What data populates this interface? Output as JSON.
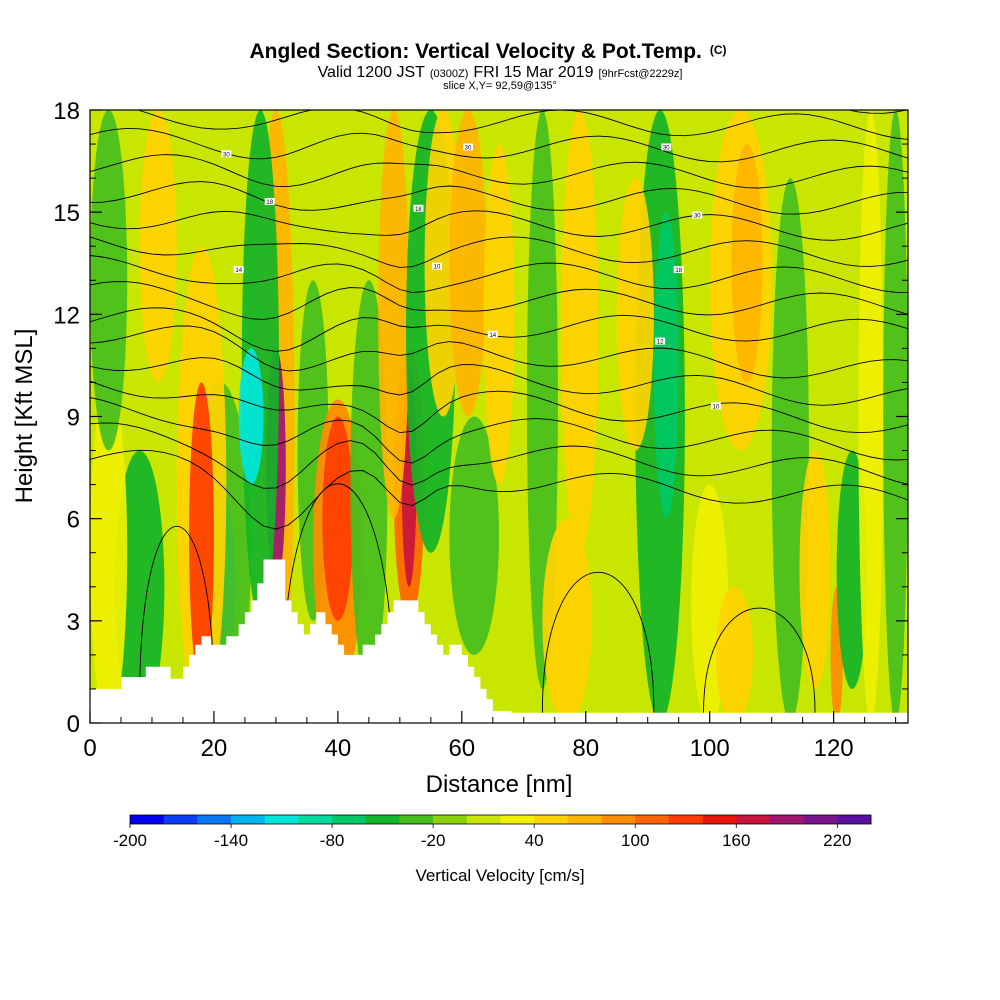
{
  "header": {
    "title": "Angled Section: Vertical Velocity & Pot.Temp.",
    "title_tag": "(C)",
    "valid_prefix": "Valid 1200 JST",
    "valid_utc": "(0300Z)",
    "valid_date": "FRI 15 Mar 2019",
    "forecast_info": "[9hrFcst@2229z]",
    "slice_info": "slice X,Y= 92,59@135°"
  },
  "chart_data": {
    "type": "heatmap",
    "title": "Angled Section: Vertical Velocity & Pot.Temp.",
    "xlabel": "Distance [nm]",
    "ylabel": "Height [Kft MSL]",
    "xlim": [
      0,
      132
    ],
    "ylim": [
      0,
      18
    ],
    "x_ticks": [
      0,
      20,
      40,
      60,
      80,
      100,
      120
    ],
    "y_ticks": [
      0,
      3,
      6,
      9,
      12,
      15,
      18
    ],
    "x_tick_labels": [
      "0",
      "20",
      "40",
      "60",
      "80",
      "100",
      "120"
    ],
    "y_tick_labels": [
      "0",
      "3",
      "6",
      "9",
      "12",
      "15",
      "18"
    ],
    "colorbar": {
      "label": "Vertical Velocity [cm/s]",
      "min": -200,
      "max": 240,
      "step": 20,
      "tick_values": [
        -200,
        -140,
        -80,
        -20,
        40,
        100,
        160,
        220
      ],
      "tick_labels": [
        "-200",
        "-140",
        "-80",
        "-20",
        "40",
        "100",
        "160",
        "220"
      ],
      "colors": [
        "#0000f0",
        "#0a3ef5",
        "#0a78f5",
        "#00b4f0",
        "#00e6dc",
        "#00dca0",
        "#00c864",
        "#14b428",
        "#46be1e",
        "#8cd20a",
        "#c8e600",
        "#f0f000",
        "#ffd200",
        "#ffb400",
        "#ff8c00",
        "#ff6400",
        "#ff3c00",
        "#e6140a",
        "#c8143c",
        "#a0146e",
        "#7a148c",
        "#5a10a0"
      ]
    },
    "terrain": [
      [
        0,
        1
      ],
      [
        5,
        1
      ],
      [
        5,
        1.35
      ],
      [
        9,
        1.35
      ],
      [
        9,
        1.65
      ],
      [
        13,
        1.65
      ],
      [
        13,
        1.3
      ],
      [
        15,
        1.3
      ],
      [
        15,
        1.65
      ],
      [
        16,
        1.65
      ],
      [
        16,
        2.0
      ],
      [
        17,
        2.0
      ],
      [
        17,
        2.3
      ],
      [
        18,
        2.3
      ],
      [
        18,
        2.55
      ],
      [
        19.5,
        2.55
      ],
      [
        19.5,
        2.3
      ],
      [
        22,
        2.3
      ],
      [
        22,
        2.55
      ],
      [
        24,
        2.55
      ],
      [
        24,
        2.9
      ],
      [
        25,
        2.9
      ],
      [
        25,
        3.25
      ],
      [
        26,
        3.25
      ],
      [
        26,
        3.6
      ],
      [
        27,
        3.6
      ],
      [
        27,
        4.1
      ],
      [
        28,
        4.1
      ],
      [
        28,
        4.8
      ],
      [
        31.5,
        4.8
      ],
      [
        31.5,
        3.6
      ],
      [
        32.5,
        3.6
      ],
      [
        32.5,
        3.25
      ],
      [
        33.5,
        3.25
      ],
      [
        33.5,
        2.9
      ],
      [
        34.5,
        2.9
      ],
      [
        34.5,
        2.6
      ],
      [
        35.5,
        2.6
      ],
      [
        35.5,
        2.9
      ],
      [
        36.5,
        2.9
      ],
      [
        36.5,
        3.25
      ],
      [
        38,
        3.25
      ],
      [
        38,
        2.9
      ],
      [
        39,
        2.9
      ],
      [
        39,
        2.6
      ],
      [
        40,
        2.6
      ],
      [
        40,
        2.3
      ],
      [
        41,
        2.3
      ],
      [
        41,
        2.0
      ],
      [
        44,
        2.0
      ],
      [
        44,
        2.3
      ],
      [
        46,
        2.3
      ],
      [
        46,
        2.6
      ],
      [
        47,
        2.6
      ],
      [
        47,
        2.9
      ],
      [
        48,
        2.9
      ],
      [
        48,
        3.25
      ],
      [
        49,
        3.25
      ],
      [
        49,
        3.6
      ],
      [
        53,
        3.6
      ],
      [
        53,
        3.25
      ],
      [
        54,
        3.25
      ],
      [
        54,
        2.9
      ],
      [
        55,
        2.9
      ],
      [
        55,
        2.6
      ],
      [
        56,
        2.6
      ],
      [
        56,
        2.3
      ],
      [
        57,
        2.3
      ],
      [
        57,
        2.0
      ],
      [
        58,
        2.0
      ],
      [
        58,
        2.3
      ],
      [
        60,
        2.3
      ],
      [
        60,
        2.0
      ],
      [
        61,
        2.0
      ],
      [
        61,
        1.65
      ],
      [
        62,
        1.65
      ],
      [
        62,
        1.35
      ],
      [
        63,
        1.35
      ],
      [
        63,
        1.0
      ],
      [
        64,
        1.0
      ],
      [
        64,
        0.7
      ],
      [
        65,
        0.7
      ],
      [
        65,
        0.35
      ],
      [
        68,
        0.35
      ],
      [
        68,
        0.3
      ],
      [
        132,
        0.3
      ]
    ],
    "potential_temperature_labels": [
      "30",
      "18",
      "14",
      "30",
      "10",
      "18",
      "14",
      "30",
      "30",
      "18",
      "12",
      "10"
    ]
  }
}
